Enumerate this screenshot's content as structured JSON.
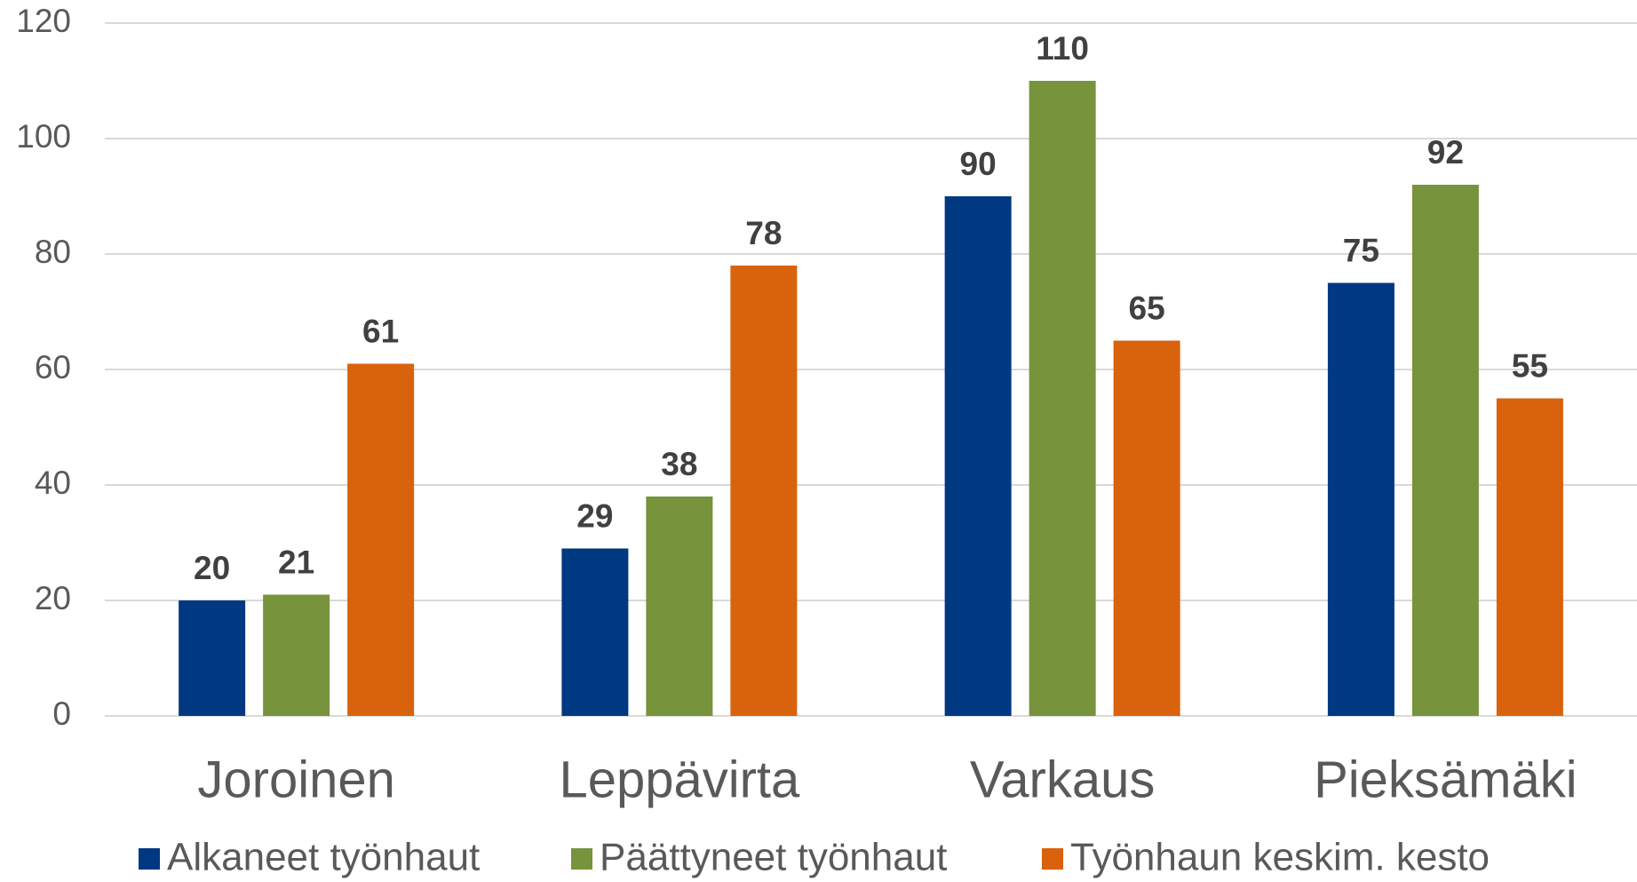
{
  "chart_data": {
    "type": "bar",
    "categories": [
      "Joroinen",
      "Leppävirta",
      "Varkaus",
      "Pieksämäki"
    ],
    "series": [
      {
        "name": "Alkaneet työnhaut",
        "color": "#003882",
        "values": [
          20,
          29,
          90,
          75
        ]
      },
      {
        "name": "Päättyneet työnhaut",
        "color": "#77933c",
        "values": [
          21,
          38,
          110,
          92
        ]
      },
      {
        "name": "Työnhaun keskim. kesto",
        "color": "#d9620c",
        "values": [
          61,
          78,
          65,
          55
        ]
      }
    ],
    "ylim": [
      0,
      120
    ],
    "yticks": [
      0,
      20,
      40,
      60,
      80,
      100,
      120
    ],
    "grid": true,
    "legend": "bottom"
  }
}
